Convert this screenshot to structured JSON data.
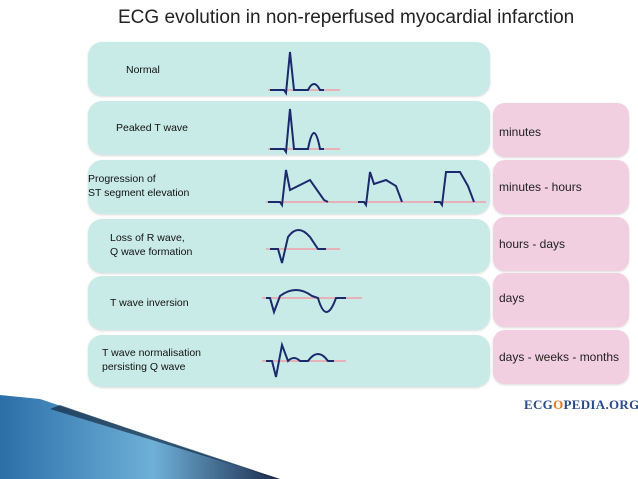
{
  "title": "ECG evolution in non-reperfused myocardial infarction",
  "stages": [
    {
      "label": "Normal",
      "timing": ""
    },
    {
      "label": "Peaked T wave",
      "timing": "minutes"
    },
    {
      "label": "Progression of ST segment elevation",
      "timing": "minutes - hours"
    },
    {
      "label": "Loss of R wave, Q wave formation",
      "timing": "hours - days"
    },
    {
      "label": "T wave inversion",
      "timing": "days"
    },
    {
      "label": "T wave normalisation persisting Q wave",
      "timing": "days - weeks - months"
    }
  ],
  "labels_split": {
    "s0": [
      "Normal"
    ],
    "s1": [
      "Peaked T wave"
    ],
    "s2": [
      "Progression of",
      "ST segment elevation"
    ],
    "s3": [
      "Loss of R wave,",
      "Q wave formation"
    ],
    "s4": [
      "T wave inversion"
    ],
    "s5": [
      "T wave normalisation",
      "persisting Q wave"
    ]
  },
  "logo": {
    "pre": "ECG",
    "mark": "O",
    "post": "PEDIA.ORG"
  },
  "colors": {
    "stage_box": "#c9ebe8",
    "time_box": "#f2cfe0",
    "trace": "#1a2a6c",
    "baseline": "#f0a0a8"
  }
}
